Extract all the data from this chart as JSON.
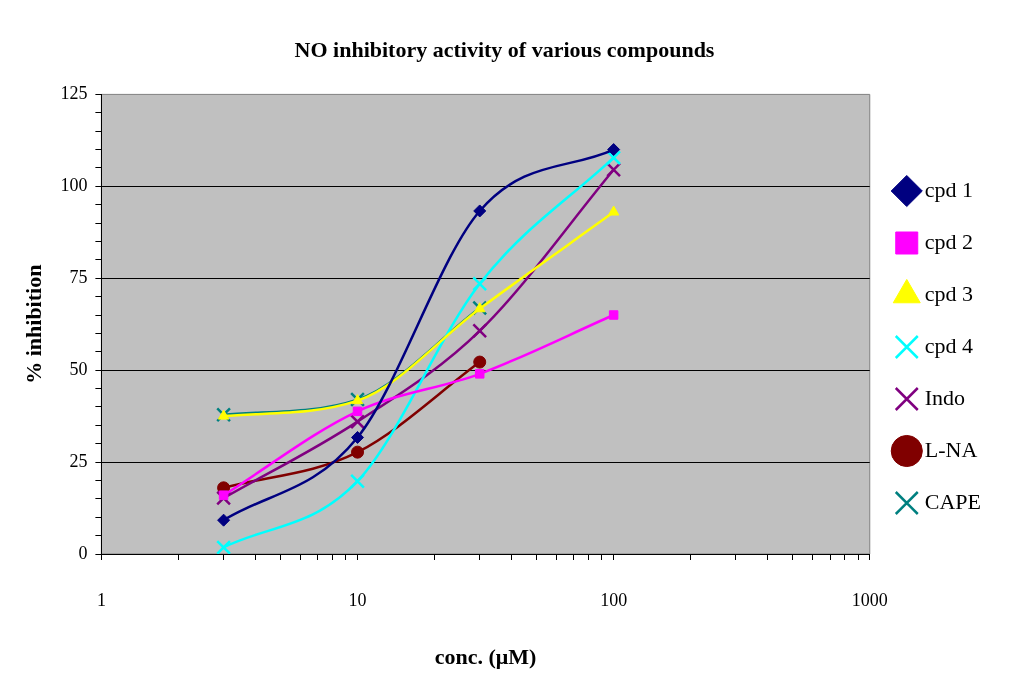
{
  "chart_data": {
    "type": "line",
    "title": "NO inhibitory activity of various compounds",
    "xlabel": "conc. (μM)",
    "ylabel": "% inhibition",
    "x": [
      3,
      10,
      30,
      100
    ],
    "log": "x",
    "xlim": [
      1,
      1000
    ],
    "xticks": [
      1,
      {
        "value": 2,
        "label": null
      },
      {
        "value": 3,
        "label": null
      },
      {
        "value": 4,
        "label": null
      },
      {
        "value": 5,
        "label": null
      },
      {
        "value": 6,
        "label": null
      },
      {
        "value": 7,
        "label": null
      },
      {
        "value": 8,
        "label": null
      },
      {
        "value": 9,
        "label": null
      },
      10,
      {
        "value": 20,
        "label": null
      },
      {
        "value": 30,
        "label": null
      },
      {
        "value": 40,
        "label": null
      },
      {
        "value": 50,
        "label": null
      },
      {
        "value": 60,
        "label": null
      },
      {
        "value": 70,
        "label": null
      },
      {
        "value": 80,
        "label": null
      },
      {
        "value": 90,
        "label": null
      },
      100,
      {
        "value": 200,
        "label": null
      },
      {
        "value": 300,
        "label": null
      },
      {
        "value": 400,
        "label": null
      },
      {
        "value": 500,
        "label": null
      },
      {
        "value": 600,
        "label": null
      },
      {
        "value": 700,
        "label": null
      },
      {
        "value": 800,
        "label": null
      },
      {
        "value": 900,
        "label": null
      },
      1000
    ],
    "ylim": [
      0,
      125
    ],
    "yticks": [
      0,
      {
        "value": 5,
        "label": null
      },
      {
        "value": 10,
        "label": null
      },
      {
        "value": 15,
        "label": null
      },
      {
        "value": 20,
        "label": null
      },
      25,
      {
        "value": 30,
        "label": null
      },
      {
        "value": 35,
        "label": null
      },
      {
        "value": 40,
        "label": null
      },
      {
        "value": 45,
        "label": null
      },
      50,
      {
        "value": 55,
        "label": null
      },
      {
        "value": 60,
        "label": null
      },
      {
        "value": 65,
        "label": null
      },
      {
        "value": 70,
        "label": null
      },
      75,
      {
        "value": 80,
        "label": null
      },
      {
        "value": 85,
        "label": null
      },
      {
        "value": 90,
        "label": null
      },
      {
        "value": 95,
        "label": null
      },
      100,
      {
        "value": 105,
        "label": null
      },
      {
        "value": 110,
        "label": null
      },
      {
        "value": 115,
        "label": null
      },
      {
        "value": 120,
        "label": null
      },
      125
    ],
    "grid": "y",
    "legend": "right",
    "series": [
      {
        "name": "cpd 1",
        "color": "#000080",
        "marker": "diamond",
        "values": [
          9.2,
          31.7,
          93.3,
          110
        ]
      },
      {
        "name": "cpd 2",
        "color": "#ff00ff",
        "marker": "square",
        "values": [
          16,
          38.8,
          49,
          65
        ]
      },
      {
        "name": "cpd 3",
        "color": "#ffff00",
        "marker": "triangle",
        "values": [
          37.5,
          41.7,
          66.7,
          93
        ]
      },
      {
        "name": "cpd 4",
        "color": "#00ffff",
        "marker": "cross",
        "values": [
          1.8,
          19.8,
          73.5,
          107.8
        ]
      },
      {
        "name": "Indo",
        "color": "#800080",
        "marker": "cross",
        "values": [
          15.2,
          36,
          60.7,
          104.5
        ]
      },
      {
        "name": "L-NA",
        "color": "#800000",
        "marker": "circle",
        "values": [
          18,
          27.7,
          52.2,
          null
        ]
      },
      {
        "name": "CAPE",
        "color": "#008080",
        "marker": "cross",
        "values": [
          37.9,
          42,
          66.9,
          null
        ]
      }
    ]
  }
}
